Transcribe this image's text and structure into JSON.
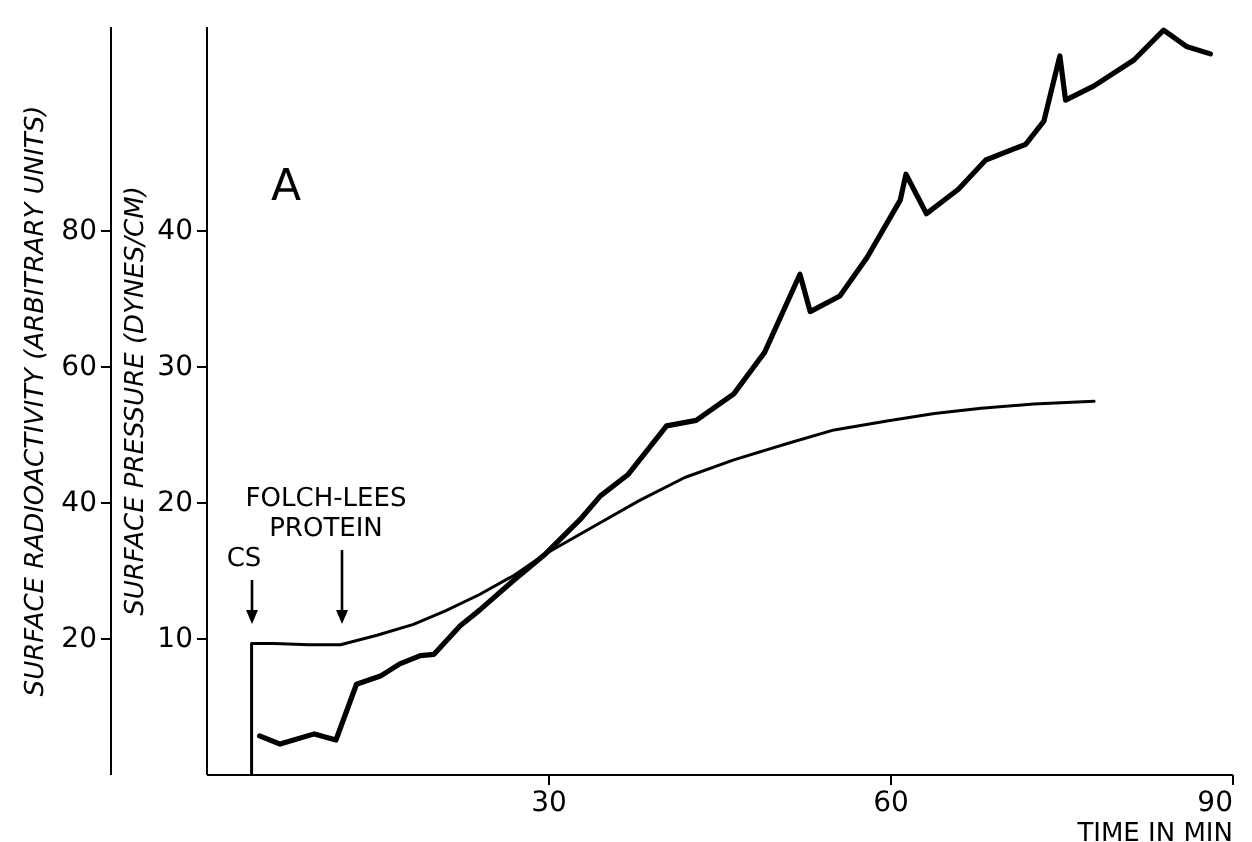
{
  "chart_data": {
    "type": "line",
    "xlabel": "TIME IN MIN",
    "ylabel": "SURFACE RADIOACTIVITY (ARBITRARY UNITS)",
    "y2label": "SURFACE PRESSURE (DYNES/CM)",
    "xlim": [
      0,
      90
    ],
    "xticks": [
      30,
      60,
      90
    ],
    "ylim": [
      0,
      110
    ],
    "yticks": [
      20,
      40,
      60,
      80
    ],
    "y2lim": [
      0,
      55
    ],
    "y2ticks": [
      10,
      20,
      30,
      40
    ],
    "grid": false,
    "annotations": [
      "A",
      "CS",
      "FOLCH-LEES PROTEIN"
    ],
    "series": [
      {
        "color": "#000000",
        "x": [
          4.7,
          6.5,
          9.5,
          11.4,
          13.2,
          15.3,
          17,
          18.8,
          20,
          22.3,
          24,
          27,
          29.8,
          32.8,
          34.6,
          37,
          40.4,
          43,
          46.3,
          49,
          52.1,
          53,
          55.6,
          58,
          60.9,
          61.4,
          63.2,
          66,
          68.4,
          71.9,
          73.5,
          74.9,
          75.4,
          77.9,
          81.4,
          84,
          86,
          88.1
        ],
        "values": [
          5.6,
          4.4,
          5.9,
          5,
          13.2,
          14.4,
          16.2,
          17.4,
          17.6,
          21.8,
          24.1,
          28.5,
          32.4,
          37.4,
          40.9,
          44,
          51.2,
          52,
          55.9,
          62,
          73.5,
          68,
          70.3,
          76,
          84.4,
          88.2,
          82.4,
          86,
          90.3,
          92.6,
          96,
          105.6,
          99.1,
          101.2,
          105,
          109.4,
          107,
          105.9
        ]
      },
      {
        "color": "#000000",
        "axis": "y2",
        "x": [
          4,
          4,
          6,
          9,
          11.8,
          15,
          18.2,
          21,
          24,
          27,
          29.8,
          34,
          38,
          42,
          46.3,
          51,
          55.1,
          60,
          63.9,
          68,
          72.6,
          75,
          77.9
        ],
        "values": [
          0,
          9.6,
          9.6,
          9.5,
          9.5,
          10.2,
          11,
          12,
          13.2,
          14.6,
          16.2,
          18.2,
          20.1,
          21.8,
          23.1,
          24.3,
          25.3,
          26,
          26.5,
          26.9,
          27.2,
          27.3,
          27.4
        ]
      }
    ]
  }
}
